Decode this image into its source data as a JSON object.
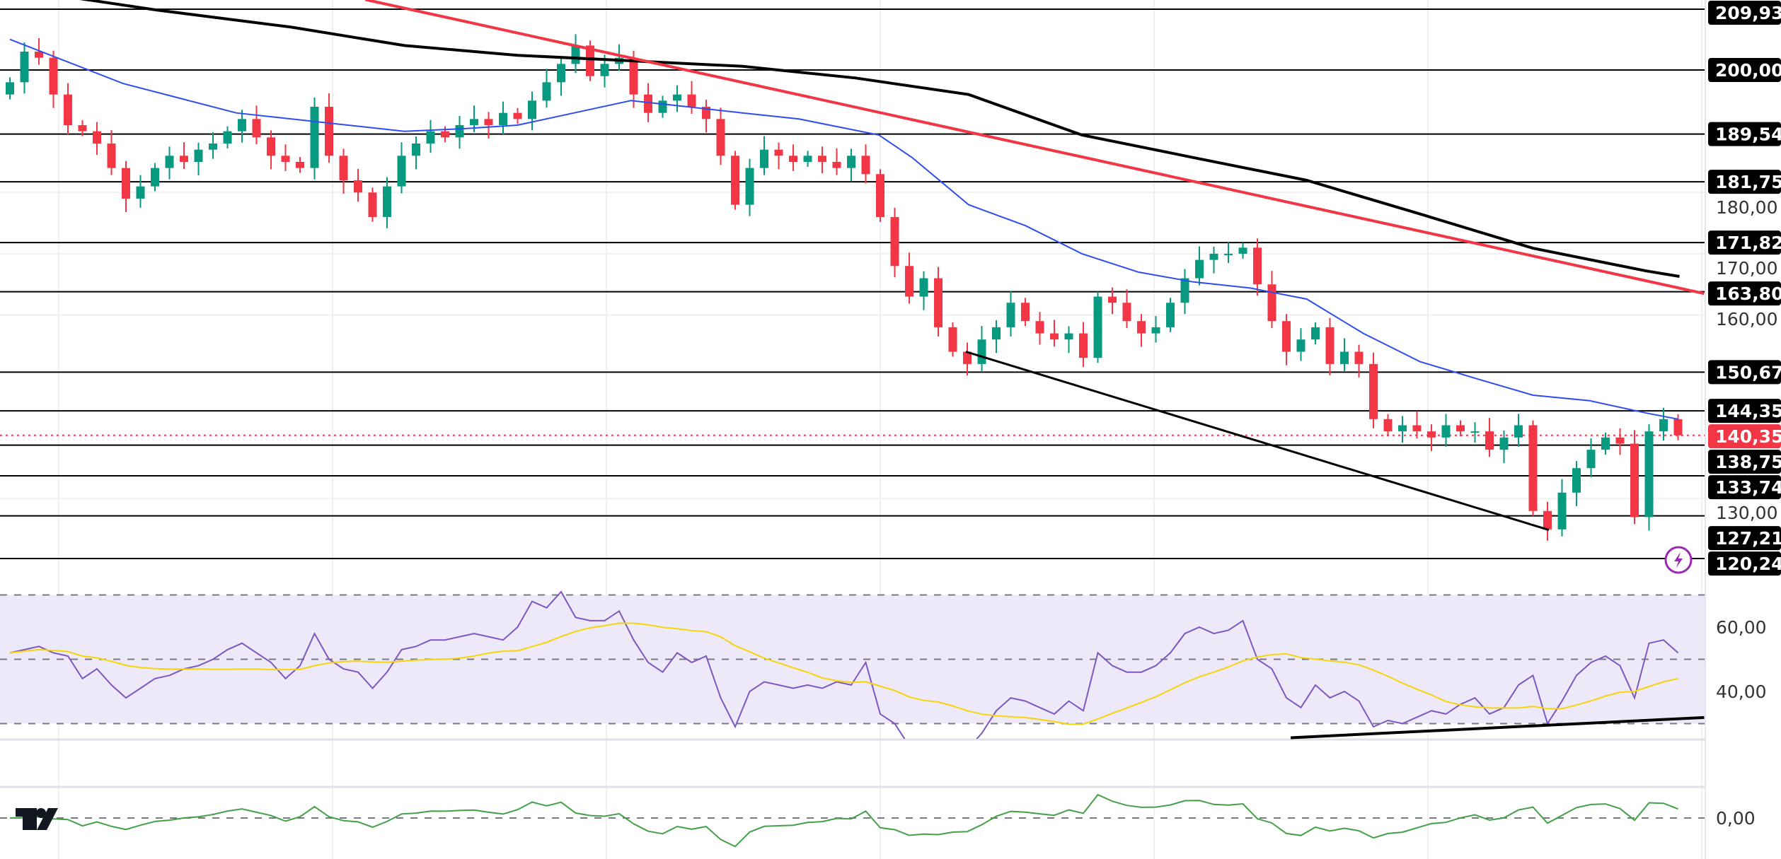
{
  "chart_data": {
    "type": "candlestick",
    "price_axis": {
      "range": [
        118,
        212
      ],
      "ticks": [
        "180,00",
        "170,00",
        "160,00",
        "130,00"
      ],
      "tick_values": [
        180,
        170,
        160,
        130
      ]
    },
    "closes": [
      198,
      203,
      202,
      196,
      191,
      190,
      188,
      184,
      179,
      181,
      184,
      186,
      185,
      187,
      188,
      190,
      192,
      189,
      186,
      185,
      184,
      194,
      186,
      182,
      180,
      176,
      181,
      186,
      188,
      190,
      189,
      191,
      192,
      191,
      193,
      192,
      195,
      198,
      201,
      204,
      199,
      201,
      202,
      196,
      193,
      195,
      196,
      194,
      192,
      186,
      178,
      184,
      187,
      186,
      185,
      186,
      185,
      184,
      186,
      183,
      176,
      168,
      163,
      166,
      158,
      154,
      152,
      156,
      158,
      162,
      159,
      157,
      156,
      157,
      153,
      163,
      162,
      159,
      157,
      158,
      162,
      166,
      169,
      170,
      170,
      171,
      165,
      159,
      154,
      156,
      158,
      152,
      154,
      152,
      143,
      141,
      142,
      141,
      140,
      142,
      141,
      141,
      138,
      140,
      142,
      128,
      125,
      131,
      135,
      138,
      140,
      139,
      127,
      141,
      143,
      140.35
    ],
    "levels": [
      {
        "value": 209.93,
        "label": "209,93"
      },
      {
        "value": 200.0,
        "label": "200,00"
      },
      {
        "value": 189.54,
        "label": "189,54"
      },
      {
        "value": 181.75,
        "label": "181,75"
      },
      {
        "value": 171.82,
        "label": "171,82"
      },
      {
        "value": 163.8,
        "label": "163,80"
      },
      {
        "value": 150.67,
        "label": "150,67"
      },
      {
        "value": 144.35,
        "label": "144,35"
      },
      {
        "value": 138.75,
        "label": "138,75"
      },
      {
        "value": 133.74,
        "label": "133,74"
      },
      {
        "value": 127.21,
        "label": "127,21"
      },
      {
        "value": 120.24,
        "label": "120,24"
      }
    ],
    "current_price": {
      "value": 140.35,
      "label": "140,35"
    },
    "ma_fast": [
      [
        0,
        205
      ],
      [
        7.8,
        197.8
      ],
      [
        15.6,
        193
      ],
      [
        23.3,
        191
      ],
      [
        27.2,
        190
      ],
      [
        31.1,
        190.4
      ],
      [
        35,
        191
      ],
      [
        38.9,
        193
      ],
      [
        42.8,
        195
      ],
      [
        46.7,
        194
      ],
      [
        50.5,
        193
      ],
      [
        54.4,
        192
      ],
      [
        59.9,
        189.4
      ],
      [
        62.2,
        185.7
      ],
      [
        66.1,
        178
      ],
      [
        70,
        174.6
      ],
      [
        73.9,
        170
      ],
      [
        77.8,
        167
      ],
      [
        81.6,
        165.4
      ],
      [
        85.5,
        164.4
      ],
      [
        89.4,
        162.6
      ],
      [
        93.3,
        157
      ],
      [
        97.2,
        152.4
      ],
      [
        101.1,
        149.6
      ],
      [
        105,
        146.9
      ],
      [
        108.9,
        146
      ],
      [
        112.8,
        144
      ],
      [
        115,
        143
      ]
    ],
    "ma_slow": [
      [
        4.7,
        211.7
      ],
      [
        10.1,
        209.8
      ],
      [
        19.4,
        207
      ],
      [
        27.2,
        204
      ],
      [
        35,
        202.4
      ],
      [
        42.8,
        201.5
      ],
      [
        50.5,
        200.6
      ],
      [
        58.3,
        198.7
      ],
      [
        66.1,
        196
      ],
      [
        73.9,
        189.4
      ],
      [
        81.6,
        185.7
      ],
      [
        89.4,
        182
      ],
      [
        97.2,
        176.5
      ],
      [
        105,
        170.9
      ],
      [
        112.8,
        167.2
      ],
      [
        115.1,
        166.3
      ]
    ],
    "trendline_resistance": [
      [
        24.5,
        211.5
      ],
      [
        116.8,
        163.5
      ]
    ],
    "trendline_support": [
      [
        65.9,
        154
      ],
      [
        106.1,
        124.9
      ]
    ],
    "rsi": {
      "values": [
        52,
        53,
        54,
        52,
        51,
        44,
        47,
        42,
        38,
        41,
        44,
        45,
        47,
        48,
        50,
        53,
        55,
        52,
        49,
        44,
        48,
        58,
        50,
        47,
        46,
        41,
        46,
        53,
        54,
        56,
        56,
        57,
        58,
        57,
        56,
        60,
        68,
        66,
        71,
        63,
        62,
        62,
        65,
        56,
        49,
        46,
        52,
        49,
        51,
        38,
        29,
        40,
        43,
        42,
        41,
        42,
        41,
        43,
        42,
        49,
        33,
        30,
        23,
        23,
        22,
        23,
        22,
        27,
        34,
        38,
        37,
        35,
        33,
        37,
        34,
        52,
        48,
        46,
        46,
        48,
        52,
        58,
        60,
        58,
        59,
        62,
        50,
        47,
        38,
        35,
        42,
        38,
        40,
        37,
        29,
        31,
        30,
        32,
        34,
        33,
        36,
        38,
        33,
        35,
        42,
        45,
        30,
        37,
        45,
        49,
        51,
        48,
        38,
        55,
        56,
        52
      ],
      "upper_band": 70,
      "lower_band": 30,
      "middle": 50,
      "ticks": [
        "60,00",
        "40,00"
      ],
      "tick_values": [
        60,
        40
      ],
      "trendline": [
        [
          88.3,
          25.6
        ],
        [
          116.8,
          31.9
        ]
      ]
    },
    "oscillator": {
      "ticks": [
        "0,00"
      ],
      "tick_values": [
        0
      ]
    },
    "colors": {
      "up": "#089981",
      "down": "#f23645",
      "ma_fast": "#2e4df0",
      "ma_slow": "#000000",
      "resistance": "#f23645",
      "rsi": "#7e57c2",
      "rsi_ma": "#f5d50a",
      "oscillator": "#43a047",
      "rsi_band": "#ede9f8"
    }
  },
  "logo": {
    "text": "TV"
  },
  "icons": {
    "alert": "lightning-icon"
  }
}
